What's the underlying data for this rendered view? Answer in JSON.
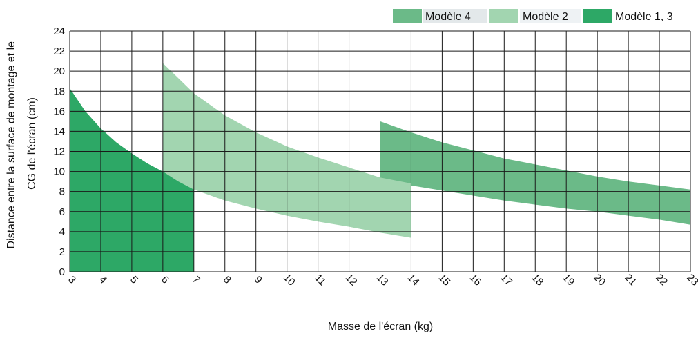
{
  "chart_data": {
    "type": "area",
    "xlabel": "Masse de l'écran (kg)",
    "ylabel": [
      "Distance entre la surface de montage et le",
      "CG de l'écran (cm)"
    ],
    "xlim": [
      3,
      23
    ],
    "ylim": [
      0,
      24
    ],
    "x_ticks": [
      3,
      4,
      5,
      6,
      7,
      8,
      9,
      10,
      11,
      12,
      13,
      14,
      15,
      16,
      17,
      18,
      19,
      20,
      21,
      22,
      23
    ],
    "y_ticks": [
      0,
      2,
      4,
      6,
      8,
      10,
      12,
      14,
      16,
      18,
      20,
      22,
      24
    ],
    "grid": true,
    "legend_position": "top-right",
    "colors": {
      "m13": "#2da866",
      "m2": "#a2d5b0",
      "m4": "#6bba88",
      "grid": "#1a1a1a"
    },
    "series": [
      {
        "name": "Modèle  4",
        "color": "#6bba88",
        "upper": [
          [
            13,
            15.0
          ],
          [
            14,
            13.9
          ],
          [
            15,
            12.9
          ],
          [
            16,
            12.1
          ],
          [
            17,
            11.3
          ],
          [
            18,
            10.7
          ],
          [
            19,
            10.1
          ],
          [
            20,
            9.5
          ],
          [
            21,
            9.0
          ],
          [
            22,
            8.6
          ],
          [
            23,
            8.2
          ]
        ],
        "lower": [
          [
            13,
            9.3
          ],
          [
            14,
            8.6
          ],
          [
            15,
            8.1
          ],
          [
            16,
            7.6
          ],
          [
            17,
            7.1
          ],
          [
            18,
            6.7
          ],
          [
            19,
            6.3
          ],
          [
            20,
            6.0
          ],
          [
            21,
            5.6
          ],
          [
            22,
            5.2
          ],
          [
            23,
            4.7
          ]
        ]
      },
      {
        "name": "Modèle  2",
        "color": "#a2d5b0",
        "upper": [
          [
            6,
            20.8
          ],
          [
            7,
            17.8
          ],
          [
            8,
            15.6
          ],
          [
            9,
            13.9
          ],
          [
            10,
            12.5
          ],
          [
            11,
            11.4
          ],
          [
            12,
            10.4
          ],
          [
            13,
            9.4
          ],
          [
            14,
            8.8
          ]
        ],
        "lower": [
          [
            6,
            9.6
          ],
          [
            7,
            8.2
          ],
          [
            8,
            7.1
          ],
          [
            9,
            6.3
          ],
          [
            10,
            5.6
          ],
          [
            11,
            5.0
          ],
          [
            12,
            4.5
          ],
          [
            13,
            3.9
          ],
          [
            14,
            3.4
          ]
        ]
      },
      {
        "name": "Modèle  1, 3",
        "color": "#2da866",
        "upper": [
          [
            3,
            18.3
          ],
          [
            3.5,
            16.0
          ],
          [
            4,
            14.3
          ],
          [
            4.5,
            12.9
          ],
          [
            5,
            11.8
          ],
          [
            5.5,
            10.8
          ],
          [
            6,
            10.0
          ],
          [
            6.5,
            9.0
          ],
          [
            7,
            8.2
          ]
        ],
        "lower": [
          [
            3,
            0
          ],
          [
            7,
            0
          ]
        ]
      }
    ]
  }
}
